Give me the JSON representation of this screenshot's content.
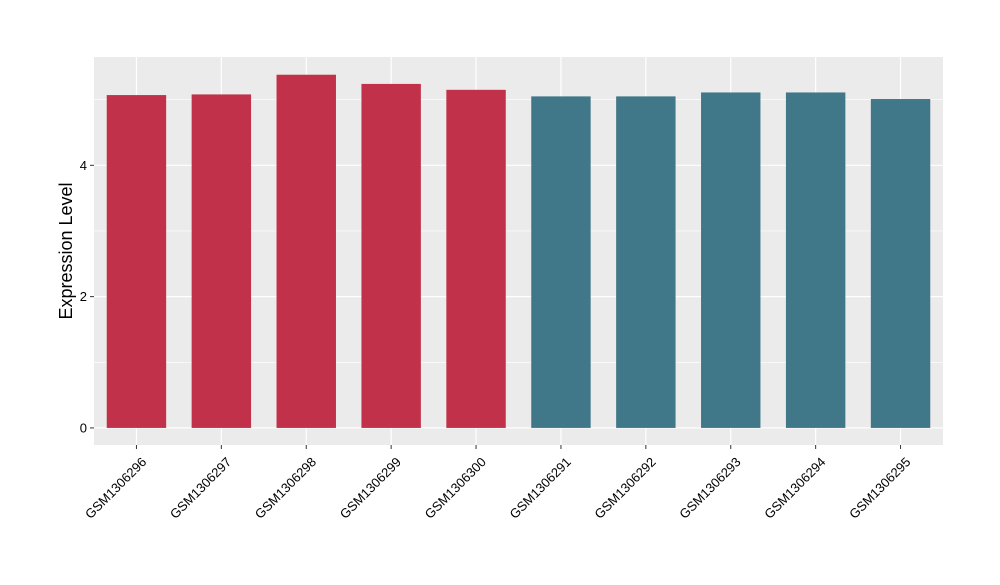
{
  "chart_data": {
    "type": "bar",
    "categories": [
      "GSM1306296",
      "GSM1306297",
      "GSM1306298",
      "GSM1306299",
      "GSM1306300",
      "GSM1306291",
      "GSM1306292",
      "GSM1306293",
      "GSM1306294",
      "GSM1306295"
    ],
    "values": [
      5.07,
      5.08,
      5.38,
      5.24,
      5.15,
      5.05,
      5.05,
      5.11,
      5.11,
      5.01
    ],
    "bar_colors": [
      "#c13149",
      "#c13149",
      "#c13149",
      "#c13149",
      "#c13149",
      "#417889",
      "#417889",
      "#417889",
      "#417889",
      "#417889"
    ],
    "ylabel": "Expression Level",
    "xlabel": "",
    "ylim": [
      -0.26,
      5.65
    ],
    "yticks": [
      0,
      2,
      4
    ],
    "grid": true,
    "panel_background": "#ebebeb",
    "legend": "none"
  }
}
